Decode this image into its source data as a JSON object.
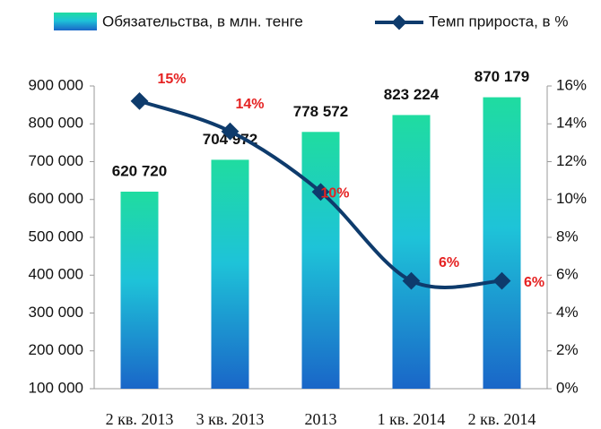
{
  "chart_data": {
    "type": "bar_line",
    "categories": [
      "2 кв. 2013",
      "3 кв. 2013",
      "2013",
      "1 кв. 2014",
      "2 кв. 2014"
    ],
    "series": [
      {
        "name": "Обязательства, в млн. тенге",
        "type": "bar",
        "color": "#1a7fd6",
        "values": [
          620720,
          704972,
          778572,
          823224,
          870179
        ],
        "value_labels": [
          "620 720",
          "704 972",
          "778 572",
          "823 224",
          "870 179"
        ]
      },
      {
        "name": "Темп прироста, в %",
        "type": "line",
        "axis": "y2",
        "color": "#0e3b6c",
        "values": [
          15.2,
          13.6,
          10.4,
          5.7,
          5.7
        ],
        "value_labels": [
          "15%",
          "14%",
          "10%",
          "6%",
          "6%"
        ]
      }
    ],
    "ylim": [
      100000,
      900000
    ],
    "yticks": [
      {
        "value": 100000,
        "label": "100 000"
      },
      {
        "value": 200000,
        "label": "200 000"
      },
      {
        "value": 300000,
        "label": "300 000"
      },
      {
        "value": 400000,
        "label": "400 000"
      },
      {
        "value": 500000,
        "label": "500 000"
      },
      {
        "value": 600000,
        "label": "600 000"
      },
      {
        "value": 700000,
        "label": "700 000"
      },
      {
        "value": 800000,
        "label": "800 000"
      },
      {
        "value": 900000,
        "label": "900 000"
      }
    ],
    "y2lim": [
      0,
      16
    ],
    "y2ticks": [
      {
        "value": 0,
        "label": "0%"
      },
      {
        "value": 2,
        "label": "2%"
      },
      {
        "value": 4,
        "label": "4%"
      },
      {
        "value": 6,
        "label": "6%"
      },
      {
        "value": 8,
        "label": "8%"
      },
      {
        "value": 10,
        "label": "10%"
      },
      {
        "value": 12,
        "label": "12%"
      },
      {
        "value": 14,
        "label": "14%"
      },
      {
        "value": 16,
        "label": "16%"
      }
    ],
    "legend": "top"
  }
}
